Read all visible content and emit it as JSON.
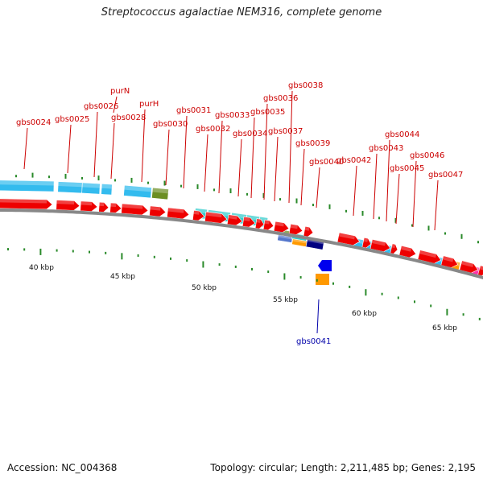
{
  "title": "Streptococcus agalactiae NEM316, complete genome",
  "footer": {
    "accession": "Accession: NC_004368",
    "summary": "Topology: circular; Length: 2,211,485 bp; Genes: 2,195"
  },
  "colors": {
    "gene_label": "#cc0000",
    "highlight_label": "#0000aa",
    "cds_arrow": "#ee0000",
    "backbone": "#888888",
    "tick": "#2a8a2a",
    "cyan_feature": "#33bbee",
    "teal_feature": "#33cccc",
    "olive_feature": "#6b8e23",
    "orange_feature": "#ff9900",
    "navy_feature": "#000080",
    "blue_feature": "#0000ee",
    "magenta_feature": "#ff33aa"
  },
  "gene_labels": [
    "gbs0024",
    "gbs0025",
    "gbs0026",
    "purN",
    "gbs0028",
    "purH",
    "gbs0030",
    "gbs0031",
    "gbs0032",
    "gbs0033",
    "gbs0034",
    "gbs0035",
    "gbs0036",
    "gbs0037",
    "gbs0038",
    "gbs0039",
    "gbs0040",
    "gbs0042",
    "gbs0043",
    "gbs0044",
    "gbs0045",
    "gbs0046",
    "gbs0047"
  ],
  "highlight_label": "gbs0041",
  "scale_labels": [
    "40 kbp",
    "45 kbp",
    "50 kbp",
    "55 kbp",
    "60 kbp",
    "65 kbp"
  ]
}
